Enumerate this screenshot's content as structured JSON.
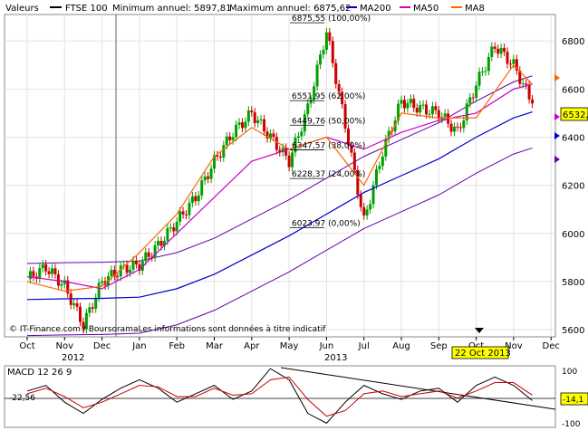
{
  "header": {
    "valeurs": "Valeurs",
    "symbol": "FTSE 100",
    "min_label": "Minimum annuel: 5897,81",
    "max_label": "Maximum annuel: 6875,62",
    "ma200": "MA200",
    "ma50": "MA50",
    "ma8": "MA8"
  },
  "colors": {
    "price_up": "#00a000",
    "price_down": "#cc0000",
    "ma200": "#0000cc",
    "ma50": "#cc00cc",
    "ma8": "#ff6600",
    "bollinger": "#6600aa",
    "macd": "#000000",
    "signal": "#cc0000",
    "last_price_bg": "#ffff00"
  },
  "copyright": "© IT-Finance.com / BoursoramaLes informations sont données à titre indicatif",
  "last_price_tag": "6532,4",
  "date_tag": "22 Oct 2013",
  "year_labels": [
    "2012",
    "2013"
  ],
  "fib_labels": [
    "6875,55 (100,00%)",
    "6551,95 (62,00%)",
    "6449,76 (50,00%)",
    "6347,57 (38,00%)",
    "6228,37 (24,00%)",
    "6023,97 (0,00%)"
  ],
  "macd": {
    "title": "MACD 12 26 9",
    "left_value": "-22,56",
    "right_value": "-14,1",
    "ticks": [
      "100",
      "0",
      "-100"
    ]
  },
  "chart_data": {
    "type": "line",
    "title": "FTSE 100",
    "x_ticks": [
      "Oct",
      "Nov",
      "Dec",
      "Jan",
      "Feb",
      "Mar",
      "Apr",
      "May",
      "Jun",
      "Jul",
      "Aug",
      "Sep",
      "Oct",
      "Nov",
      "Dec"
    ],
    "y_ticks": [
      "5600",
      "5800",
      "6000",
      "6200",
      "6400",
      "6600",
      "6800"
    ],
    "ylim": [
      5570,
      6910
    ],
    "series": [
      {
        "name": "FTSE 100",
        "x": [
          0,
          0.5,
          1,
          1.5,
          2,
          2.5,
          3,
          3.5,
          4,
          4.5,
          5,
          5.5,
          6,
          6.5,
          7,
          7.5,
          8,
          8.5,
          9,
          9.5,
          10,
          10.5,
          11,
          11.5,
          12,
          12.5,
          13,
          13.5
        ],
        "values": [
          5810,
          5860,
          5780,
          5620,
          5800,
          5850,
          5870,
          5950,
          6050,
          6150,
          6300,
          6420,
          6500,
          6400,
          6300,
          6520,
          6840,
          6450,
          6050,
          6340,
          6550,
          6520,
          6500,
          6420,
          6620,
          6780,
          6700,
          6540
        ]
      },
      {
        "name": "MA200",
        "x": [
          0,
          1,
          2,
          3,
          4,
          5,
          6,
          7,
          8,
          9,
          10,
          11,
          12,
          13,
          13.5
        ],
        "values": [
          5725,
          5728,
          5730,
          5735,
          5770,
          5830,
          5910,
          5990,
          6080,
          6170,
          6240,
          6310,
          6400,
          6480,
          6505
        ]
      },
      {
        "name": "MA50",
        "x": [
          0,
          1,
          2,
          3,
          4,
          5,
          6,
          7,
          8,
          9,
          10,
          11,
          12,
          13,
          13.5
        ],
        "values": [
          5820,
          5800,
          5770,
          5850,
          6000,
          6150,
          6300,
          6350,
          6400,
          6350,
          6420,
          6470,
          6500,
          6600,
          6620
        ]
      },
      {
        "name": "MA8",
        "x": [
          0,
          1,
          2,
          3,
          4,
          5,
          6,
          7,
          8,
          9,
          10,
          11,
          12,
          13,
          13.5
        ],
        "values": [
          5800,
          5760,
          5780,
          5920,
          6080,
          6320,
          6440,
          6350,
          6400,
          6200,
          6500,
          6480,
          6480,
          6700,
          6620
        ]
      }
    ],
    "macd_series": [
      {
        "name": "MACD",
        "values": [
          20,
          40,
          -20,
          -60,
          -10,
          30,
          60,
          30,
          -20,
          10,
          40,
          -10,
          20,
          100,
          60,
          -60,
          -95,
          -20,
          40,
          10,
          -10,
          20,
          30,
          -20,
          40,
          70,
          40,
          -14
        ]
      },
      {
        "name": "Signal",
        "values": [
          10,
          30,
          0,
          -40,
          -20,
          10,
          40,
          35,
          0,
          0,
          30,
          5,
          10,
          60,
          70,
          -10,
          -70,
          -50,
          10,
          20,
          0,
          10,
          20,
          -5,
          20,
          50,
          50,
          5
        ]
      }
    ],
    "macd_ylim": [
      -110,
      110
    ],
    "grid": true,
    "legend": "top"
  }
}
